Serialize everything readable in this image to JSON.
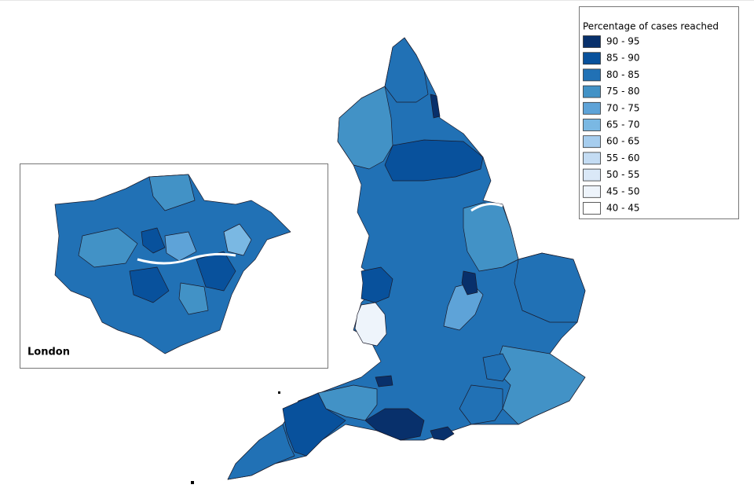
{
  "legend": {
    "title": "Percentage of cases reached",
    "items": [
      {
        "label": "90 - 95",
        "color": "#08306b"
      },
      {
        "label": "85 - 90",
        "color": "#08519c"
      },
      {
        "label": "80 - 85",
        "color": "#2171b5"
      },
      {
        "label": "75 - 80",
        "color": "#4292c6"
      },
      {
        "label": "70 - 75",
        "color": "#5ea3d8"
      },
      {
        "label": "65 - 70",
        "color": "#7ab8e3"
      },
      {
        "label": "60 - 65",
        "color": "#a6cdee"
      },
      {
        "label": "55 - 60",
        "color": "#c4dcf3"
      },
      {
        "label": "50 - 55",
        "color": "#dae8f7"
      },
      {
        "label": "45 - 50",
        "color": "#eef4fb"
      },
      {
        "label": "40 - 45",
        "color": "#ffffff"
      }
    ]
  },
  "inset": {
    "label": "London"
  }
}
